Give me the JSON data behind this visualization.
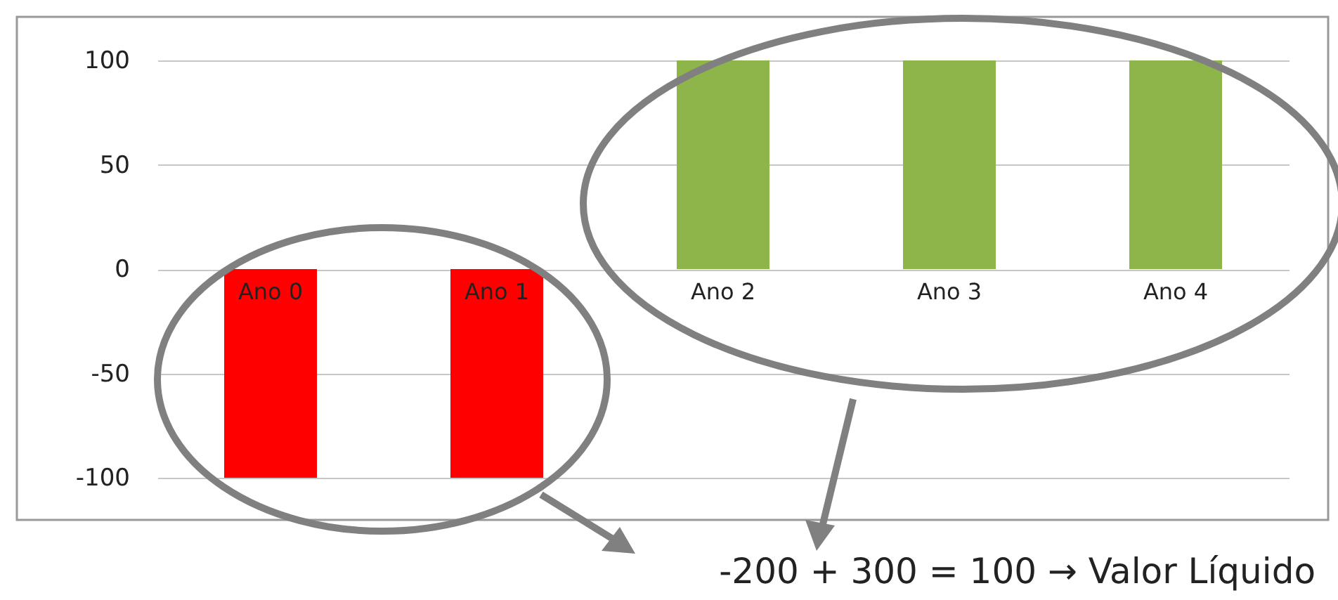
{
  "chart_data": {
    "type": "bar",
    "categories": [
      "Ano 0",
      "Ano 1",
      "Ano 2",
      "Ano 3",
      "Ano 4"
    ],
    "values": [
      -100,
      -100,
      100,
      100,
      100
    ],
    "colors": [
      "#ff0000",
      "#ff0000",
      "#8db54a",
      "#8db54a",
      "#8db54a"
    ],
    "ylim": [
      -100,
      100
    ],
    "yticks": [
      -100,
      -50,
      0,
      50,
      100
    ],
    "grid": "y",
    "annotations": [
      "-200 + 300 = 100 → Valor Líquido"
    ]
  }
}
